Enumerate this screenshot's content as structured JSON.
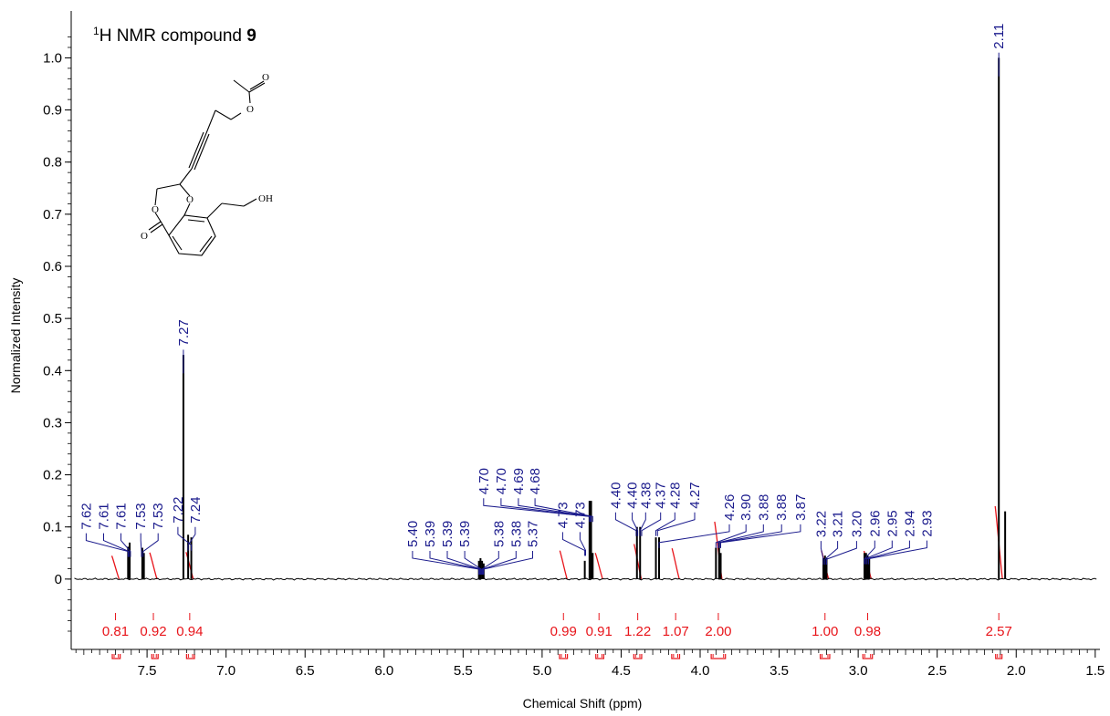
{
  "chart_data": {
    "type": "line",
    "title": {
      "prefix": "1",
      "main": "H NMR compound ",
      "bold": "9"
    },
    "xlabel": "Chemical Shift (ppm)",
    "ylabel": "Normalized Intensity",
    "xlim": [
      7.98,
      1.47
    ],
    "ylim": [
      -0.135,
      1.09
    ],
    "x_reversed": true,
    "xticks": [
      "7.5",
      "7.0",
      "6.5",
      "6.0",
      "5.5",
      "5.0",
      "4.5",
      "4.0",
      "3.5",
      "3.0",
      "2.5",
      "2.0",
      "1.5"
    ],
    "yticks": [
      "0",
      "0.1",
      "0.2",
      "0.3",
      "0.4",
      "0.5",
      "0.6",
      "0.7",
      "0.8",
      "0.9",
      "1.0"
    ],
    "colors": {
      "spectrum": "#000000",
      "peak_labels": "#1a1a8c",
      "integrals": "#e8141a"
    },
    "peaks": [
      {
        "ppm": 7.62,
        "intensity": 0.062
      },
      {
        "ppm": 7.61,
        "intensity": 0.07
      },
      {
        "ppm": 7.53,
        "intensity": 0.06
      },
      {
        "ppm": 7.52,
        "intensity": 0.05
      },
      {
        "ppm": 7.27,
        "intensity": 0.43
      },
      {
        "ppm": 7.24,
        "intensity": 0.085
      },
      {
        "ppm": 7.22,
        "intensity": 0.08
      },
      {
        "ppm": 5.4,
        "intensity": 0.035
      },
      {
        "ppm": 5.39,
        "intensity": 0.04
      },
      {
        "ppm": 5.38,
        "intensity": 0.035
      },
      {
        "ppm": 5.37,
        "intensity": 0.03
      },
      {
        "ppm": 4.73,
        "intensity": 0.035
      },
      {
        "ppm": 4.7,
        "intensity": 0.15
      },
      {
        "ppm": 4.69,
        "intensity": 0.15
      },
      {
        "ppm": 4.68,
        "intensity": 0.05
      },
      {
        "ppm": 4.4,
        "intensity": 0.1
      },
      {
        "ppm": 4.38,
        "intensity": 0.1
      },
      {
        "ppm": 4.28,
        "intensity": 0.08
      },
      {
        "ppm": 4.26,
        "intensity": 0.08
      },
      {
        "ppm": 3.9,
        "intensity": 0.06
      },
      {
        "ppm": 3.88,
        "intensity": 0.07
      },
      {
        "ppm": 3.87,
        "intensity": 0.05
      },
      {
        "ppm": 3.22,
        "intensity": 0.04
      },
      {
        "ppm": 3.21,
        "intensity": 0.045
      },
      {
        "ppm": 3.2,
        "intensity": 0.04
      },
      {
        "ppm": 2.96,
        "intensity": 0.05
      },
      {
        "ppm": 2.95,
        "intensity": 0.05
      },
      {
        "ppm": 2.94,
        "intensity": 0.045
      },
      {
        "ppm": 2.93,
        "intensity": 0.04
      },
      {
        "ppm": 2.11,
        "intensity": 1.0
      },
      {
        "ppm": 2.07,
        "intensity": 0.13
      }
    ],
    "peak_labels": [
      {
        "text": "7.62",
        "ppm": 7.62,
        "xl": 7.885,
        "top": 0.088
      },
      {
        "text": "7.61",
        "ppm": 7.615,
        "xl": 7.775,
        "top": 0.088
      },
      {
        "text": "7.61",
        "ppm": 7.605,
        "xl": 7.665,
        "top": 0.088
      },
      {
        "text": "7.53",
        "ppm": 7.535,
        "xl": 7.54,
        "top": 0.088
      },
      {
        "text": "7.53",
        "ppm": 7.525,
        "xl": 7.43,
        "top": 0.088
      },
      {
        "text": "7.27",
        "ppm": 7.27,
        "xl": 7.27,
        "top": 0.44
      },
      {
        "text": "7.24",
        "ppm": 7.24,
        "xl": 7.195,
        "top": 0.1
      },
      {
        "text": "7.22",
        "ppm": 7.22,
        "xl": 7.305,
        "top": 0.1
      },
      {
        "text": "5.40",
        "ppm": 5.4,
        "xl": 5.82,
        "top": 0.054
      },
      {
        "text": "5.39",
        "ppm": 5.395,
        "xl": 5.71,
        "top": 0.054
      },
      {
        "text": "5.39",
        "ppm": 5.39,
        "xl": 5.6,
        "top": 0.054
      },
      {
        "text": "5.39",
        "ppm": 5.385,
        "xl": 5.49,
        "top": 0.054
      },
      {
        "text": "5.38",
        "ppm": 5.38,
        "xl": 5.275,
        "top": 0.054
      },
      {
        "text": "5.38",
        "ppm": 5.375,
        "xl": 5.165,
        "top": 0.054
      },
      {
        "text": "5.37",
        "ppm": 5.37,
        "xl": 5.06,
        "top": 0.054
      },
      {
        "text": "4.70",
        "ppm": 4.7,
        "xl": 5.37,
        "top": 0.155
      },
      {
        "text": "4.70",
        "ppm": 4.695,
        "xl": 5.26,
        "top": 0.155
      },
      {
        "text": "4.69",
        "ppm": 4.69,
        "xl": 5.15,
        "top": 0.155
      },
      {
        "text": "4.68",
        "ppm": 4.68,
        "xl": 5.045,
        "top": 0.155
      },
      {
        "text": "4.73",
        "ppm": 4.73,
        "xl": 4.87,
        "top": 0.09
      },
      {
        "text": "4.73",
        "ppm": 4.725,
        "xl": 4.76,
        "top": 0.09
      },
      {
        "text": "4.40",
        "ppm": 4.405,
        "xl": 4.535,
        "top": 0.128
      },
      {
        "text": "4.40",
        "ppm": 4.395,
        "xl": 4.43,
        "top": 0.128
      },
      {
        "text": "4.38",
        "ppm": 4.38,
        "xl": 4.345,
        "top": 0.128
      },
      {
        "text": "4.37",
        "ppm": 4.37,
        "xl": 4.25,
        "top": 0.128
      },
      {
        "text": "4.28",
        "ppm": 4.28,
        "xl": 4.16,
        "top": 0.128
      },
      {
        "text": "4.27",
        "ppm": 4.27,
        "xl": 4.035,
        "top": 0.128
      },
      {
        "text": "4.26",
        "ppm": 4.26,
        "xl": 3.815,
        "top": 0.105
      },
      {
        "text": "3.90",
        "ppm": 3.9,
        "xl": 3.71,
        "top": 0.105
      },
      {
        "text": "3.88",
        "ppm": 3.885,
        "xl": 3.6,
        "top": 0.105
      },
      {
        "text": "3.88",
        "ppm": 3.88,
        "xl": 3.485,
        "top": 0.105
      },
      {
        "text": "3.87",
        "ppm": 3.87,
        "xl": 3.365,
        "top": 0.105
      },
      {
        "text": "3.22",
        "ppm": 3.22,
        "xl": 3.235,
        "top": 0.073
      },
      {
        "text": "3.21",
        "ppm": 3.21,
        "xl": 3.13,
        "top": 0.073
      },
      {
        "text": "3.20",
        "ppm": 3.2,
        "xl": 3.01,
        "top": 0.073
      },
      {
        "text": "2.96",
        "ppm": 2.96,
        "xl": 2.895,
        "top": 0.074
      },
      {
        "text": "2.95",
        "ppm": 2.955,
        "xl": 2.785,
        "top": 0.074
      },
      {
        "text": "2.94",
        "ppm": 2.945,
        "xl": 2.675,
        "top": 0.074
      },
      {
        "text": "2.93",
        "ppm": 2.935,
        "xl": 2.565,
        "top": 0.074
      },
      {
        "text": "2.11",
        "ppm": 2.11,
        "xl": 2.11,
        "top": 1.01
      }
    ],
    "integrals": [
      {
        "label": "0.81",
        "from": 7.72,
        "to": 7.67,
        "text_x": 7.7
      },
      {
        "label": "0.92",
        "from": 7.47,
        "to": 7.43,
        "text_x": 7.46
      },
      {
        "label": "0.94",
        "from": 7.25,
        "to": 7.2,
        "text_x": 7.23
      },
      {
        "label": "0.99",
        "from": 4.89,
        "to": 4.84,
        "text_x": 4.865
      },
      {
        "label": "0.91",
        "from": 4.66,
        "to": 4.61,
        "text_x": 4.64
      },
      {
        "label": "1.22",
        "from": 4.42,
        "to": 4.37,
        "text_x": 4.395
      },
      {
        "label": "1.07",
        "from": 4.18,
        "to": 4.13,
        "text_x": 4.155
      },
      {
        "label": "2.00",
        "from": 3.93,
        "to": 3.84,
        "text_x": 3.885
      },
      {
        "label": "1.00",
        "from": 3.24,
        "to": 3.18,
        "text_x": 3.21
      },
      {
        "label": "0.98",
        "from": 2.97,
        "to": 2.91,
        "text_x": 2.94
      },
      {
        "label": "2.57",
        "from": 2.13,
        "to": 2.09,
        "text_x": 2.11
      }
    ]
  },
  "structure": {
    "atoms": {
      "carbonyl_o_top": "O",
      "ester_o_top": "O",
      "ring_o1": "O",
      "ring_o2": "O",
      "carbonyl_o_left": "O",
      "hydroxyl": "OH"
    }
  }
}
